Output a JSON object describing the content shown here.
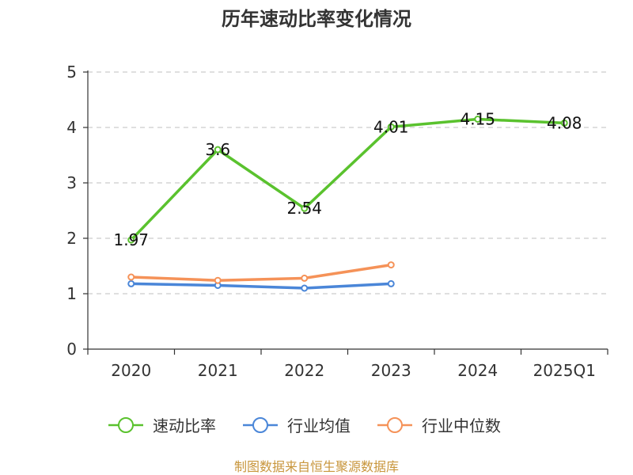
{
  "chart_data": {
    "type": "line",
    "title": "历年速动比率变化情况",
    "categories": [
      "2020",
      "2021",
      "2022",
      "2023",
      "2024",
      "2025Q1"
    ],
    "ylim": [
      0,
      5
    ],
    "yticks": [
      0,
      1,
      2,
      3,
      4,
      5
    ],
    "grid": true,
    "legend_position": "bottom",
    "series": [
      {
        "name": "速动比率",
        "color": "#5ac22e",
        "values": [
          1.97,
          3.6,
          2.54,
          4.01,
          4.15,
          4.08
        ],
        "show_labels": true
      },
      {
        "name": "行业均值",
        "color": "#4a86d8",
        "values": [
          1.18,
          1.15,
          1.1,
          1.18,
          null,
          null
        ],
        "show_labels": false
      },
      {
        "name": "行业中位数",
        "color": "#f59258",
        "values": [
          1.3,
          1.24,
          1.28,
          1.52,
          null,
          null
        ],
        "show_labels": false
      }
    ],
    "source_note": "制图数据来自恒生聚源数据库"
  }
}
